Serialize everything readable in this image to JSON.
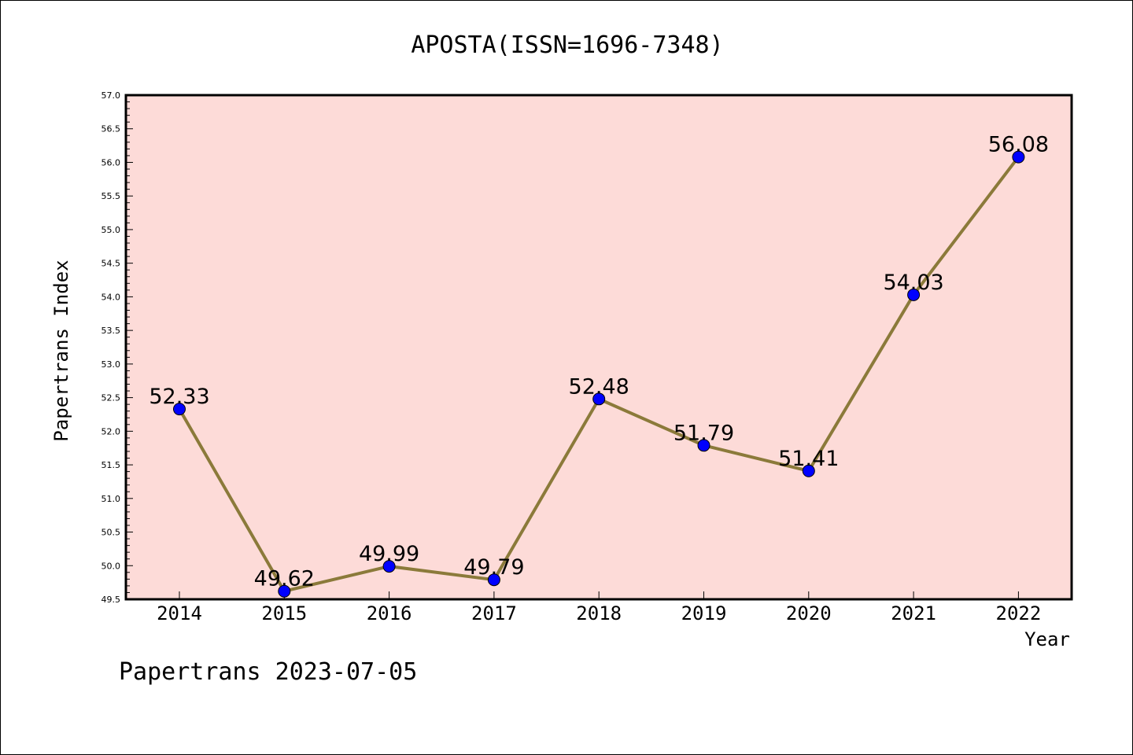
{
  "footer": {
    "text": "Papertrans 2023-07-05"
  },
  "chart_data": {
    "type": "line",
    "title": "APOSTA(ISSN=1696-7348)",
    "xlabel": "Year",
    "ylabel": "Papertrans Index",
    "categories": [
      "2014",
      "2015",
      "2016",
      "2017",
      "2018",
      "2019",
      "2020",
      "2021",
      "2022"
    ],
    "values": [
      52.33,
      49.62,
      49.99,
      49.79,
      52.48,
      51.79,
      51.41,
      54.03,
      56.08
    ],
    "data_labels": [
      "52.33",
      "49.62",
      "49.99",
      "49.79",
      "52.48",
      "51.79",
      "51.41",
      "54.03",
      "56.08"
    ],
    "ylim": [
      49.5,
      57.0
    ],
    "yticks": [
      "49.5",
      "50.0",
      "50.5",
      "51.0",
      "51.5",
      "52.0",
      "52.5",
      "53.0",
      "53.5",
      "54.0",
      "54.5",
      "55.0",
      "55.5",
      "56.0",
      "56.5",
      "57.0"
    ],
    "grid": false,
    "legend": "none",
    "colors": {
      "plot_background": "#fddbd8",
      "line": "#8b7a3a",
      "marker": "#0000ff"
    }
  }
}
